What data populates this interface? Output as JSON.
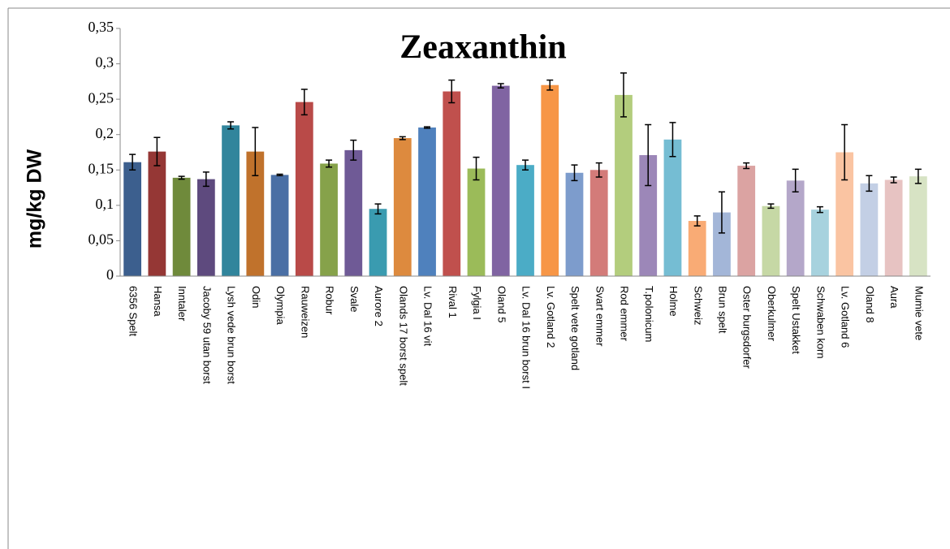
{
  "chart_data": {
    "type": "bar",
    "title": "Zeaxanthin",
    "y_label": "mg/kg DW",
    "categories": [
      "6356 Spelt",
      "Hansa",
      "Inntaler",
      "Jacoby 59 utan borst",
      "Lysh vede brun borst",
      "Odin",
      "Olympia",
      "Rauweizen",
      "Robur",
      "Svale",
      "Aurore 2",
      "Olands 17 borst spelt",
      "Lv. Dal 16 vit",
      "Rival 1",
      "Fylgia I",
      "Oland 5",
      "Lv. Dal 16 brun borst I",
      "Lv. Gotland 2",
      "Spelt vete gotland",
      "Svart emmer",
      "Rod emmer",
      "T.polonicum",
      "Holme",
      "Schweiz",
      "Brun spelt",
      "Oster burgsdorfer",
      "Oberkulmer",
      "Spelt Ustakket",
      "Schwaben korn",
      "Lv. Gotland 6",
      "Oland 8",
      "Aura",
      "Mumie vete"
    ],
    "values": [
      0.161,
      0.176,
      0.139,
      0.137,
      0.213,
      0.176,
      0.143,
      0.246,
      0.159,
      0.178,
      0.095,
      0.195,
      0.21,
      0.261,
      0.152,
      0.269,
      0.157,
      0.27,
      0.146,
      0.15,
      0.256,
      0.171,
      0.193,
      0.078,
      0.09,
      0.156,
      0.099,
      0.135,
      0.094,
      0.175,
      0.131,
      0.136,
      0.141
    ],
    "errors": [
      0.011,
      0.02,
      0.002,
      0.01,
      0.005,
      0.034,
      0.001,
      0.018,
      0.005,
      0.014,
      0.007,
      0.002,
      0.001,
      0.016,
      0.016,
      0.003,
      0.007,
      0.007,
      0.011,
      0.01,
      0.031,
      0.043,
      0.024,
      0.007,
      0.029,
      0.004,
      0.003,
      0.016,
      0.004,
      0.039,
      0.011,
      0.004,
      0.01
    ],
    "colors": [
      "#3c5f8e",
      "#953735",
      "#6f8a3b",
      "#5e4a7e",
      "#31859c",
      "#c0722c",
      "#4a6fa5",
      "#b94a48",
      "#86a24a",
      "#6f5a96",
      "#3a9bb0",
      "#dd8a3e",
      "#4f81bd",
      "#c0504d",
      "#9bbb59",
      "#8064a2",
      "#4bacc6",
      "#f79646",
      "#7d9ccc",
      "#d37b79",
      "#b3cd7d",
      "#9c87b8",
      "#75bdd3",
      "#f9ab75",
      "#a3b6d8",
      "#dba3a2",
      "#c6d8a5",
      "#b4a7c9",
      "#a7d2de",
      "#fac4a2",
      "#c3cfe5",
      "#e7c3c2",
      "#d7e3c4"
    ],
    "ylim": [
      0,
      0.35
    ],
    "yticks": [
      0,
      {
        "value": 0.05,
        "label": "0,05"
      },
      {
        "value": 0.1,
        "label": "0,1"
      },
      {
        "value": 0.15,
        "label": "0,15"
      },
      {
        "value": 0.2,
        "label": "0,2"
      },
      {
        "value": 0.25,
        "label": "0,25"
      },
      {
        "value": 0.3,
        "label": "0,3"
      },
      {
        "value": 0.35,
        "label": "0,35"
      }
    ],
    "grid": false
  }
}
